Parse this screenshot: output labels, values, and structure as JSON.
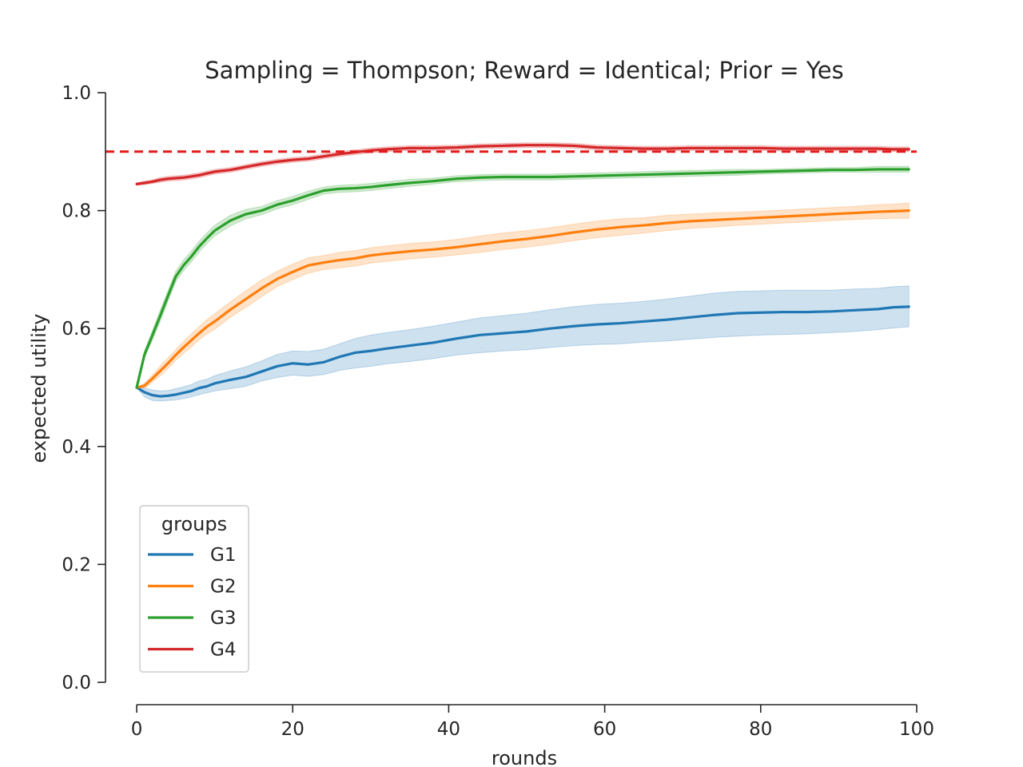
{
  "chart_data": {
    "type": "line",
    "title": "Sampling = Thompson; Reward = Identical; Prior = Yes",
    "xlabel": "rounds",
    "ylabel": "expected utility",
    "xlim": [
      -4,
      100
    ],
    "ylim": [
      0,
      1
    ],
    "xticks": [
      0,
      20,
      40,
      60,
      80,
      100
    ],
    "yticks": [
      0.0,
      0.2,
      0.4,
      0.6,
      0.8,
      1.0
    ],
    "ytick_labels": [
      "0.0",
      "0.2",
      "0.4",
      "0.6",
      "0.8",
      "1.0"
    ],
    "grid": false,
    "legend": {
      "title": "groups",
      "position": "lower-left"
    },
    "reference_line": {
      "y": 0.9,
      "style": "dashed",
      "color": "#e41a1c"
    },
    "x": [
      0,
      1,
      2,
      3,
      4,
      5,
      6,
      7,
      8,
      9,
      10,
      12,
      14,
      16,
      18,
      20,
      22,
      24,
      26,
      28,
      30,
      32,
      35,
      38,
      41,
      44,
      47,
      50,
      53,
      56,
      59,
      62,
      65,
      68,
      71,
      74,
      77,
      80,
      83,
      86,
      89,
      92,
      95,
      97,
      99
    ],
    "series": [
      {
        "name": "G1",
        "color": "#1f77b4",
        "values": [
          0.5,
          0.492,
          0.487,
          0.485,
          0.486,
          0.488,
          0.491,
          0.494,
          0.499,
          0.502,
          0.507,
          0.513,
          0.518,
          0.527,
          0.536,
          0.541,
          0.539,
          0.543,
          0.552,
          0.559,
          0.562,
          0.566,
          0.571,
          0.576,
          0.583,
          0.589,
          0.592,
          0.595,
          0.6,
          0.604,
          0.607,
          0.609,
          0.612,
          0.615,
          0.619,
          0.623,
          0.626,
          0.627,
          0.628,
          0.628,
          0.629,
          0.631,
          0.633,
          0.636,
          0.637
        ],
        "lower": [
          0.5,
          0.484,
          0.478,
          0.477,
          0.478,
          0.479,
          0.481,
          0.484,
          0.488,
          0.491,
          0.494,
          0.498,
          0.502,
          0.511,
          0.517,
          0.521,
          0.519,
          0.522,
          0.529,
          0.533,
          0.536,
          0.54,
          0.544,
          0.549,
          0.555,
          0.559,
          0.562,
          0.564,
          0.568,
          0.571,
          0.573,
          0.574,
          0.577,
          0.579,
          0.582,
          0.585,
          0.587,
          0.589,
          0.59,
          0.591,
          0.593,
          0.595,
          0.598,
          0.601,
          0.603
        ],
        "upper": [
          0.5,
          0.499,
          0.496,
          0.494,
          0.495,
          0.498,
          0.501,
          0.505,
          0.511,
          0.514,
          0.52,
          0.528,
          0.535,
          0.545,
          0.556,
          0.562,
          0.561,
          0.565,
          0.574,
          0.583,
          0.589,
          0.593,
          0.598,
          0.604,
          0.611,
          0.618,
          0.622,
          0.626,
          0.632,
          0.637,
          0.641,
          0.643,
          0.646,
          0.65,
          0.655,
          0.66,
          0.663,
          0.664,
          0.665,
          0.665,
          0.665,
          0.667,
          0.668,
          0.671,
          0.672
        ]
      },
      {
        "name": "G2",
        "color": "#ff7f0e",
        "values": [
          0.5,
          0.503,
          0.515,
          0.528,
          0.541,
          0.555,
          0.568,
          0.58,
          0.592,
          0.603,
          0.612,
          0.632,
          0.65,
          0.668,
          0.684,
          0.696,
          0.707,
          0.712,
          0.716,
          0.719,
          0.724,
          0.727,
          0.731,
          0.734,
          0.738,
          0.743,
          0.748,
          0.752,
          0.757,
          0.763,
          0.768,
          0.772,
          0.775,
          0.779,
          0.782,
          0.784,
          0.786,
          0.788,
          0.79,
          0.792,
          0.794,
          0.796,
          0.798,
          0.799,
          0.8
        ],
        "lower": [
          0.5,
          0.499,
          0.509,
          0.52,
          0.532,
          0.546,
          0.558,
          0.569,
          0.581,
          0.591,
          0.599,
          0.619,
          0.636,
          0.654,
          0.671,
          0.683,
          0.694,
          0.7,
          0.703,
          0.706,
          0.711,
          0.714,
          0.718,
          0.721,
          0.725,
          0.729,
          0.734,
          0.738,
          0.743,
          0.749,
          0.754,
          0.758,
          0.762,
          0.766,
          0.77,
          0.772,
          0.775,
          0.777,
          0.779,
          0.781,
          0.783,
          0.785,
          0.786,
          0.787,
          0.787
        ],
        "upper": [
          0.5,
          0.507,
          0.521,
          0.536,
          0.55,
          0.564,
          0.578,
          0.591,
          0.603,
          0.615,
          0.625,
          0.645,
          0.664,
          0.682,
          0.697,
          0.709,
          0.72,
          0.724,
          0.729,
          0.732,
          0.737,
          0.74,
          0.744,
          0.747,
          0.751,
          0.757,
          0.762,
          0.766,
          0.771,
          0.777,
          0.782,
          0.786,
          0.788,
          0.792,
          0.794,
          0.796,
          0.797,
          0.799,
          0.801,
          0.803,
          0.805,
          0.807,
          0.81,
          0.811,
          0.813
        ]
      },
      {
        "name": "G3",
        "color": "#2ca02c",
        "values": [
          0.5,
          0.556,
          0.588,
          0.621,
          0.655,
          0.688,
          0.707,
          0.722,
          0.739,
          0.753,
          0.766,
          0.783,
          0.794,
          0.8,
          0.81,
          0.817,
          0.826,
          0.834,
          0.837,
          0.838,
          0.84,
          0.843,
          0.847,
          0.85,
          0.854,
          0.856,
          0.857,
          0.857,
          0.857,
          0.858,
          0.859,
          0.86,
          0.861,
          0.862,
          0.863,
          0.864,
          0.865,
          0.866,
          0.867,
          0.868,
          0.869,
          0.869,
          0.87,
          0.87,
          0.87
        ],
        "lower": [
          0.5,
          0.55,
          0.58,
          0.612,
          0.646,
          0.679,
          0.698,
          0.713,
          0.73,
          0.744,
          0.757,
          0.774,
          0.786,
          0.793,
          0.803,
          0.81,
          0.819,
          0.828,
          0.831,
          0.832,
          0.834,
          0.837,
          0.841,
          0.845,
          0.849,
          0.851,
          0.852,
          0.852,
          0.852,
          0.853,
          0.854,
          0.855,
          0.856,
          0.857,
          0.858,
          0.859,
          0.86,
          0.862,
          0.863,
          0.864,
          0.865,
          0.865,
          0.865,
          0.865,
          0.865
        ],
        "upper": [
          0.5,
          0.562,
          0.596,
          0.63,
          0.664,
          0.697,
          0.716,
          0.731,
          0.748,
          0.762,
          0.775,
          0.792,
          0.802,
          0.807,
          0.817,
          0.824,
          0.833,
          0.84,
          0.843,
          0.844,
          0.846,
          0.849,
          0.853,
          0.855,
          0.859,
          0.861,
          0.862,
          0.862,
          0.862,
          0.863,
          0.864,
          0.865,
          0.866,
          0.867,
          0.868,
          0.869,
          0.87,
          0.87,
          0.871,
          0.872,
          0.873,
          0.873,
          0.875,
          0.875,
          0.875
        ]
      },
      {
        "name": "G4",
        "color": "#d62728",
        "values": [
          0.845,
          0.847,
          0.849,
          0.852,
          0.854,
          0.855,
          0.856,
          0.858,
          0.86,
          0.863,
          0.866,
          0.869,
          0.874,
          0.879,
          0.883,
          0.886,
          0.888,
          0.892,
          0.896,
          0.899,
          0.902,
          0.904,
          0.906,
          0.906,
          0.907,
          0.909,
          0.91,
          0.911,
          0.911,
          0.91,
          0.907,
          0.906,
          0.905,
          0.905,
          0.906,
          0.906,
          0.906,
          0.906,
          0.905,
          0.905,
          0.905,
          0.905,
          0.905,
          0.904,
          0.904
        ],
        "lower": [
          0.843,
          0.844,
          0.846,
          0.848,
          0.85,
          0.851,
          0.852,
          0.854,
          0.856,
          0.859,
          0.862,
          0.865,
          0.87,
          0.875,
          0.879,
          0.882,
          0.884,
          0.888,
          0.892,
          0.895,
          0.898,
          0.9,
          0.902,
          0.902,
          0.903,
          0.905,
          0.906,
          0.907,
          0.907,
          0.906,
          0.903,
          0.902,
          0.901,
          0.901,
          0.902,
          0.902,
          0.902,
          0.902,
          0.901,
          0.901,
          0.901,
          0.901,
          0.901,
          0.9,
          0.9
        ],
        "upper": [
          0.847,
          0.85,
          0.852,
          0.856,
          0.858,
          0.859,
          0.86,
          0.862,
          0.864,
          0.867,
          0.87,
          0.873,
          0.878,
          0.883,
          0.887,
          0.89,
          0.892,
          0.896,
          0.9,
          0.903,
          0.906,
          0.908,
          0.91,
          0.91,
          0.911,
          0.913,
          0.914,
          0.915,
          0.915,
          0.914,
          0.911,
          0.91,
          0.909,
          0.909,
          0.91,
          0.91,
          0.91,
          0.91,
          0.909,
          0.909,
          0.909,
          0.909,
          0.909,
          0.908,
          0.908
        ]
      }
    ]
  }
}
